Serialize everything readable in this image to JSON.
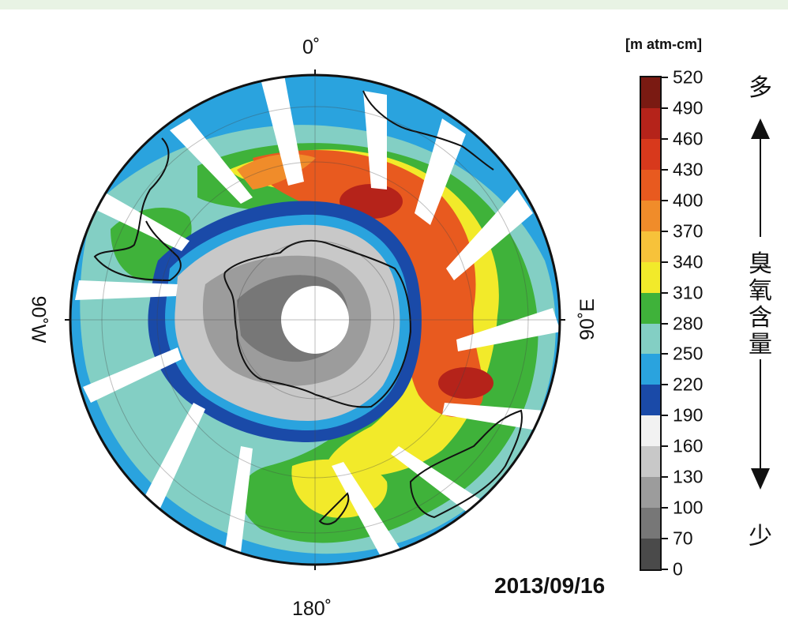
{
  "map": {
    "title_date": "2013/09/16",
    "labels": {
      "top": "0˚",
      "bottom": "180˚",
      "left": "90˚W",
      "right": "90˚E"
    }
  },
  "colorbar": {
    "units": "[m atm-cm]",
    "ticks": [
      "520",
      "490",
      "460",
      "430",
      "400",
      "370",
      "340",
      "310",
      "280",
      "250",
      "220",
      "190",
      "160",
      "130",
      "100",
      "70",
      "0"
    ],
    "colors": [
      "#7a1a12",
      "#b5231a",
      "#d8391c",
      "#e85a1f",
      "#f08c2a",
      "#f7c23a",
      "#f2ea2a",
      "#3fb23a",
      "#83cfc4",
      "#2aa3de",
      "#1a4aa8",
      "#f2f2f2",
      "#c8c8c8",
      "#9c9c9c",
      "#777777",
      "#4a4a4a"
    ],
    "high_label": "多",
    "low_label": "少",
    "axis_title": [
      "臭",
      "氧",
      "含",
      "量"
    ]
  },
  "colors": {
    "background_band": "#e8f3e4",
    "swath": "#ffffff",
    "coast": "#111111"
  }
}
